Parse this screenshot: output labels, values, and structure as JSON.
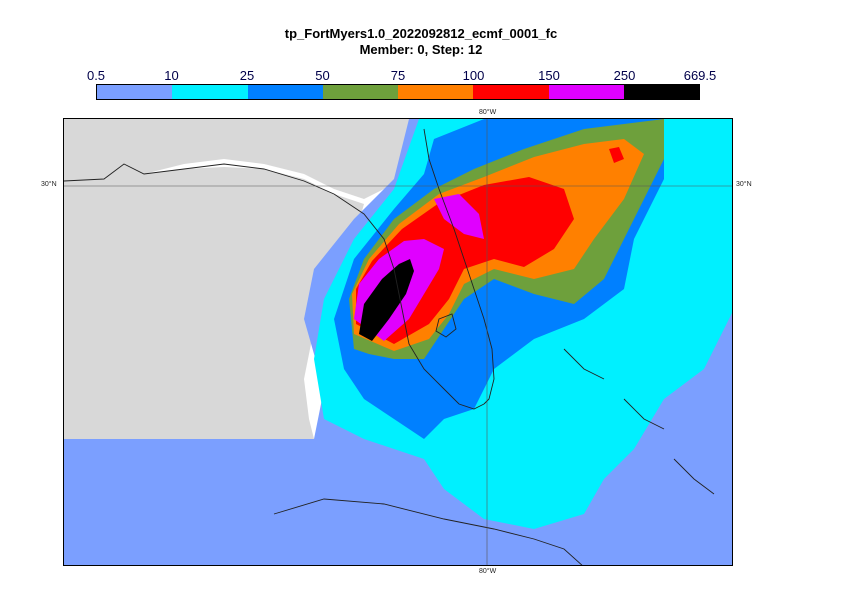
{
  "title": {
    "line1": "tp_FortMyers1.0_2022092812_ecmf_0001_fc",
    "line2": "Member: 0, Step: 12"
  },
  "legend": {
    "ticks": [
      "0.5",
      "10",
      "25",
      "50",
      "75",
      "100",
      "150",
      "250",
      "669.5"
    ],
    "colors": [
      "#7b9fff",
      "#00f0ff",
      "#0080ff",
      "#6ea03c",
      "#ff8000",
      "#ff0000",
      "#e000ff",
      "#000000"
    ]
  },
  "map": {
    "colors": {
      "land": "#d8d8d8",
      "land_north": "#c8c8c8",
      "sea": "#ffffff",
      "grid": "#555555",
      "coast": "#222222"
    },
    "gridlines": {
      "lat_label": "30°N",
      "lon_label": "80°W"
    }
  }
}
